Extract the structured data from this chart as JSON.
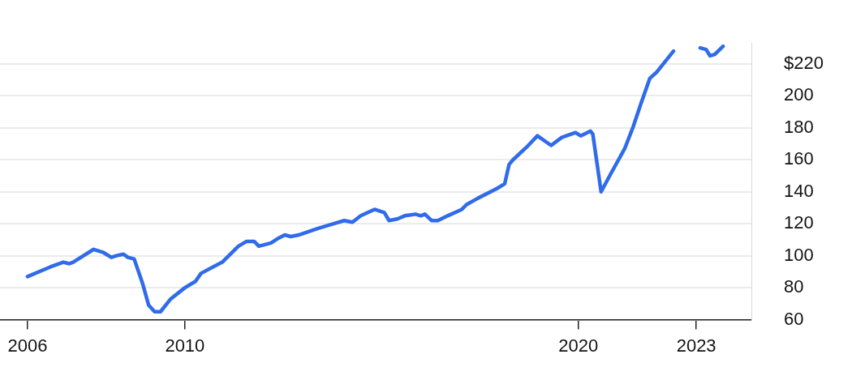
{
  "chart_data": {
    "type": "line",
    "color": "#2f6bea",
    "x": [
      2006.0,
      2006.58,
      2006.91,
      2007.06,
      2007.16,
      2007.68,
      2007.93,
      2008.13,
      2008.26,
      2008.44,
      2008.55,
      2008.71,
      2008.92,
      2009.08,
      2009.23,
      2009.38,
      2009.64,
      2010.0,
      2010.27,
      2010.41,
      2010.95,
      2011.36,
      2011.57,
      2011.76,
      2011.88,
      2012.19,
      2012.38,
      2012.54,
      2012.69,
      2012.89,
      2013.37,
      2013.78,
      2014.05,
      2014.26,
      2014.47,
      2014.82,
      2015.07,
      2015.19,
      2015.4,
      2015.59,
      2015.86,
      2016.0,
      2016.1,
      2016.27,
      2016.43,
      2016.68,
      2017.04,
      2017.16,
      2017.45,
      2017.93,
      2018.13,
      2018.24,
      2018.34,
      2018.69,
      2018.96,
      2019.31,
      2019.58,
      2019.93,
      2020.06,
      2020.31,
      2020.37,
      2020.58,
      2020.82,
      2021.18,
      2021.4,
      2021.59,
      2021.82,
      2022.0,
      2022.42,
      2022.69,
      2023.0,
      2023.1,
      2023.25,
      2023.35,
      2023.47,
      2023.68
    ],
    "values": [
      87,
      93,
      96,
      95,
      96,
      104,
      102,
      99,
      100,
      101,
      99,
      98,
      83,
      69,
      65,
      65,
      73,
      80,
      84,
      89,
      96,
      106,
      109,
      109,
      106,
      108,
      111,
      113,
      112,
      113,
      117,
      120,
      122,
      121,
      125,
      129,
      127,
      122,
      123,
      125,
      126,
      125,
      126,
      122,
      122,
      125,
      129,
      132,
      136,
      142,
      145,
      157,
      160,
      168,
      175,
      169,
      174,
      177,
      175,
      178,
      176,
      140,
      151,
      167,
      181,
      195,
      211,
      215,
      228,
      null,
      null,
      230,
      229,
      225,
      226,
      231
    ],
    "xlim": [
      2005.3,
      2024.4
    ],
    "xticks": [
      {
        "value": 2006,
        "label": "2006"
      },
      {
        "value": 2010,
        "label": "2010"
      },
      {
        "value": 2020,
        "label": "2020"
      },
      {
        "value": 2023,
        "label": "2023"
      }
    ],
    "ylim": [
      60,
      233
    ],
    "yticks": [
      60,
      80,
      100,
      120,
      140,
      160,
      180,
      200,
      {
        "value": 220,
        "label": "$220"
      }
    ],
    "grid": "y",
    "marker": "none",
    "line_style": "solid"
  }
}
